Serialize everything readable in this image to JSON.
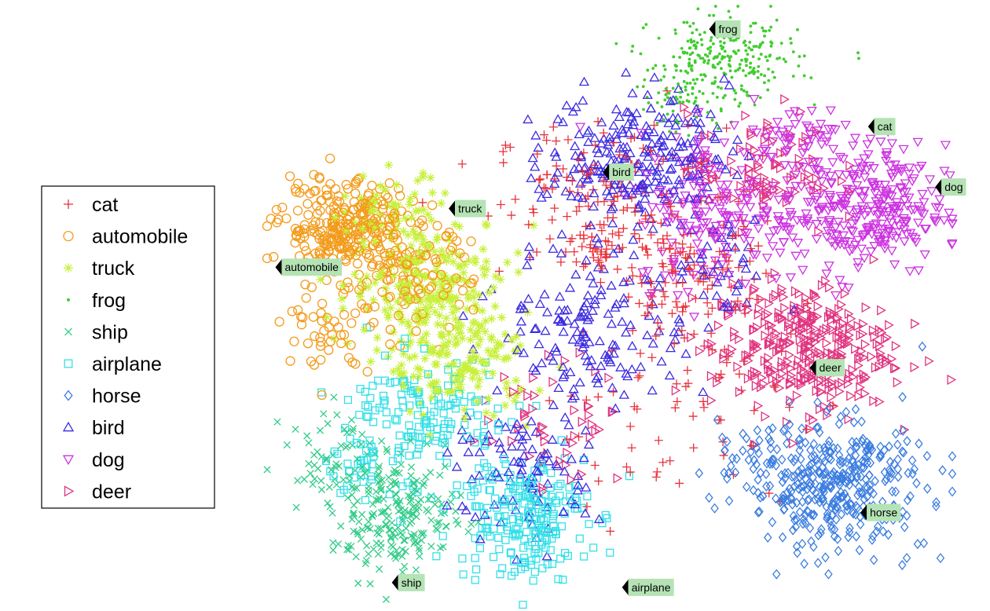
{
  "chart_data": {
    "type": "scatter",
    "title": "",
    "xlabel": "",
    "ylabel": "",
    "xlim": [
      0,
      100
    ],
    "ylim": [
      0,
      100
    ],
    "grid": false,
    "axes_visible": false,
    "legend_position": "left",
    "series": [
      {
        "name": "cat",
        "marker": "plus",
        "color": "#e8323c",
        "clusters": [
          [
            50,
            68,
            14,
            10,
            140
          ],
          [
            62,
            57,
            9,
            10,
            90
          ],
          [
            60,
            38,
            16,
            18,
            100
          ],
          [
            47,
            59,
            4,
            4,
            30
          ]
        ]
      },
      {
        "name": "automobile",
        "marker": "circle",
        "color": "#f39b1b",
        "clusters": [
          [
            11,
            63,
            7.5,
            6.5,
            260
          ],
          [
            20,
            55,
            8,
            8,
            130
          ],
          [
            9,
            45,
            5,
            5,
            40
          ]
        ]
      },
      {
        "name": "truck",
        "marker": "asterisk",
        "color": "#c8f03c",
        "clusters": [
          [
            24,
            54,
            10,
            9,
            230
          ],
          [
            28,
            40,
            9,
            7,
            150
          ],
          [
            18,
            66,
            6,
            5,
            50
          ]
        ]
      },
      {
        "name": "frog",
        "marker": "dot",
        "color": "#44cc33",
        "clusters": [
          [
            67,
            91,
            9,
            6,
            250
          ],
          [
            61,
            85,
            6,
            5,
            70
          ]
        ]
      },
      {
        "name": "ship",
        "marker": "cross",
        "color": "#33cc88",
        "clusters": [
          [
            19,
            15,
            8,
            8,
            220
          ],
          [
            10,
            26,
            6,
            6,
            50
          ]
        ]
      },
      {
        "name": "airplane",
        "marker": "square",
        "color": "#33e0e8",
        "clusters": [
          [
            37,
            15,
            8,
            9,
            220
          ],
          [
            24,
            32,
            10,
            8,
            130
          ],
          [
            15,
            24,
            5,
            6,
            50
          ]
        ]
      },
      {
        "name": "horse",
        "marker": "diamond",
        "color": "#3b7de0",
        "clusters": [
          [
            83,
            20,
            11,
            9,
            380
          ],
          [
            72,
            24,
            5,
            5,
            40
          ]
        ]
      },
      {
        "name": "bird",
        "marker": "triangle-up",
        "color": "#3b2be0",
        "clusters": [
          [
            54,
            75,
            11,
            9,
            240
          ],
          [
            48,
            47,
            11,
            11,
            150
          ],
          [
            38,
            22,
            9,
            10,
            100
          ],
          [
            66,
            55,
            6,
            7,
            40
          ]
        ]
      },
      {
        "name": "dog",
        "marker": "triangle-down",
        "color": "#cc33e0",
        "clusters": [
          [
            87,
            66,
            10,
            9,
            300
          ],
          [
            66,
            66,
            10,
            11,
            180
          ],
          [
            77,
            78,
            7,
            5,
            60
          ]
        ]
      },
      {
        "name": "deer",
        "marker": "triangle-right",
        "color": "#e0337f",
        "clusters": [
          [
            78,
            43,
            11,
            9,
            340
          ],
          [
            72,
            73,
            9,
            8,
            90
          ],
          [
            42,
            30,
            9,
            9,
            50
          ]
        ]
      }
    ],
    "annotations": [
      {
        "label": "frog",
        "x": 64.5,
        "y": 96.2
      },
      {
        "label": "cat",
        "x": 87.7,
        "y": 79.9
      },
      {
        "label": "bird",
        "x": 49.0,
        "y": 72.3
      },
      {
        "label": "truck",
        "x": 26.5,
        "y": 66.2
      },
      {
        "label": "dog",
        "x": 97.5,
        "y": 69.8
      },
      {
        "label": "automobile",
        "x": 1.2,
        "y": 56.4
      },
      {
        "label": "deer",
        "x": 79.2,
        "y": 39.6
      },
      {
        "label": "horse",
        "x": 86.6,
        "y": 15.4
      },
      {
        "label": "ship",
        "x": 18.2,
        "y": 3.7
      },
      {
        "label": "airplane",
        "x": 51.8,
        "y": 2.9
      }
    ]
  }
}
